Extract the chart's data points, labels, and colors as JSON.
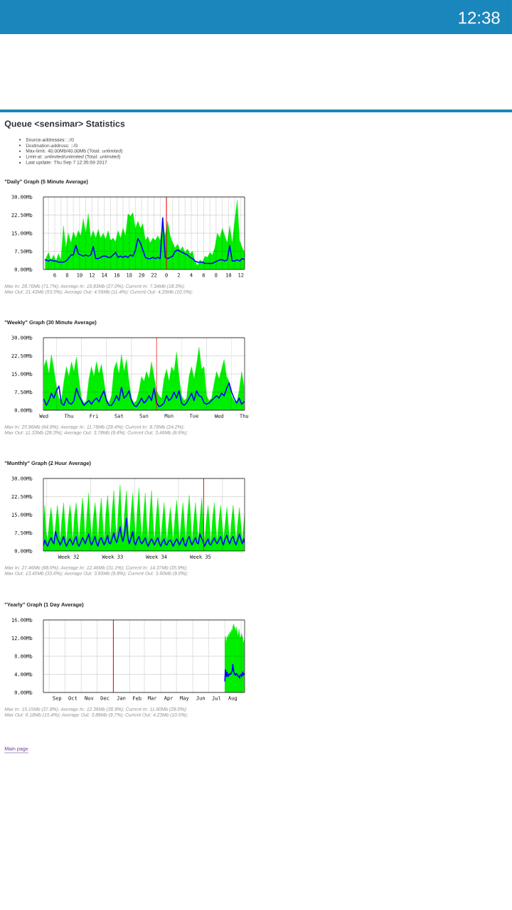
{
  "chart_data": [
    {
      "type": "other",
      "annotations": [
        "12:38"
      ]
    },
    {
      "type": "other",
      "title": "Queue <sensimar> Statistics",
      "annotations": [
        "Source-addresses: ::/0",
        "Destination-address: ::/0",
        "Max-limit: 40.00Mb/40.00Mb (Total: *unlimited*)",
        "Limit-at: *unlimited/unlimited* (Total: *unlimited*)",
        "Last update: Thu Sep 7 12:35:59 2017"
      ]
    },
    {
      "type": "area",
      "title": "\"Daily\" Graph (5 Minute Average)",
      "x": [
        "2017-09-06T04:28",
        "2017-09-06T05:00",
        "2017-09-06T05:24",
        "2017-09-06T05:48",
        "2017-09-06T06:12",
        "2017-09-06T06:36",
        "2017-09-06T07:00",
        "2017-09-06T07:24",
        "2017-09-06T07:48",
        "2017-09-06T08:12",
        "2017-09-06T08:36",
        "2017-09-06T09:00",
        "2017-09-06T09:24",
        "2017-09-06T09:48",
        "2017-09-06T10:12",
        "2017-09-06T10:36",
        "2017-09-06T11:00",
        "2017-09-06T11:24",
        "2017-09-06T11:48",
        "2017-09-06T12:12",
        "2017-09-06T12:36",
        "2017-09-06T13:00",
        "2017-09-06T13:24",
        "2017-09-06T13:48",
        "2017-09-06T14:12",
        "2017-09-06T14:36",
        "2017-09-06T15:00",
        "2017-09-06T15:24",
        "2017-09-06T15:48",
        "2017-09-06T16:12",
        "2017-09-06T16:36",
        "2017-09-06T17:00",
        "2017-09-06T17:24",
        "2017-09-06T17:48",
        "2017-09-06T18:12",
        "2017-09-06T18:36",
        "2017-09-06T19:00",
        "2017-09-06T19:24",
        "2017-09-06T19:48",
        "2017-09-06T20:12",
        "2017-09-06T20:36",
        "2017-09-06T21:00",
        "2017-09-06T21:24",
        "2017-09-06T21:48",
        "2017-09-06T22:12",
        "2017-09-06T22:36",
        "2017-09-06T23:00",
        "2017-09-06T23:24",
        "2017-09-06T23:48",
        "2017-09-07T00:12",
        "2017-09-07T00:36",
        "2017-09-07T01:00",
        "2017-09-07T01:24",
        "2017-09-07T01:48",
        "2017-09-07T02:12",
        "2017-09-07T02:36",
        "2017-09-07T03:00",
        "2017-09-07T03:24",
        "2017-09-07T03:48",
        "2017-09-07T04:12",
        "2017-09-07T04:36",
        "2017-09-07T05:00",
        "2017-09-07T05:24",
        "2017-09-07T05:48",
        "2017-09-07T06:12",
        "2017-09-07T06:36",
        "2017-09-07T07:00",
        "2017-09-07T07:24",
        "2017-09-07T07:48",
        "2017-09-07T08:12",
        "2017-09-07T08:36",
        "2017-09-07T09:00",
        "2017-09-07T09:24",
        "2017-09-07T09:48",
        "2017-09-07T10:12",
        "2017-09-07T10:36",
        "2017-09-07T11:00",
        "2017-09-07T11:24",
        "2017-09-07T11:48",
        "2017-09-07T12:12",
        "2017-09-07T12:36"
      ],
      "series": [
        {
          "type": "area",
          "color": "#00ee00",
          "values": [
            4,
            7,
            3.5,
            6,
            3.5,
            6.5,
            4,
            18,
            9,
            15,
            11,
            15.5,
            13,
            16,
            14,
            21,
            15,
            23,
            13,
            16,
            13,
            16.5,
            13,
            15,
            12.5,
            16,
            12,
            13,
            11.5,
            16,
            13,
            17,
            14,
            23,
            22,
            23.5,
            17,
            20,
            17,
            19,
            12,
            13.5,
            11,
            13,
            12,
            14,
            12,
            18,
            14,
            20,
            14,
            11,
            9,
            10.5,
            8,
            9.5,
            7,
            8.5,
            6.5,
            7.5,
            3.5,
            1.5,
            4,
            3,
            5.5,
            5,
            7,
            6,
            9,
            15,
            13,
            17,
            14,
            11,
            18,
            11,
            20,
            28.7,
            12,
            9,
            7.3
          ]
        },
        {
          "type": "line",
          "color": "#0000ff",
          "values": [
            4,
            3.5,
            4,
            3.5,
            3.5,
            3,
            3,
            3,
            3.5,
            4.5,
            6,
            6,
            10,
            6.5,
            6,
            5.5,
            6,
            5.5,
            6,
            9.5,
            4.5,
            4.5,
            5,
            5.5,
            5.5,
            5,
            5,
            6,
            7,
            5,
            5.5,
            5,
            5.5,
            5,
            6,
            5.5,
            8,
            12.8,
            11,
            8,
            5,
            4.5,
            4.5,
            5,
            4.5,
            5,
            4.5,
            21.4,
            5,
            4.5,
            5,
            5.5,
            7.5,
            8,
            7.5,
            7,
            6.5,
            6,
            5,
            4.5,
            3.5,
            3,
            3,
            3,
            2.5,
            2.5,
            2.5,
            2.5,
            3,
            3.5,
            4,
            4,
            3.5,
            4,
            9.9,
            3.5,
            3.5,
            4,
            3.5,
            4.5,
            4.2
          ]
        }
      ],
      "xlim": [
        "2017-09-06T04:10",
        "2017-09-07T12:36"
      ],
      "ylim": [
        0,
        30
      ],
      "xticks": [
        {
          "value": "2017-09-06T05:00",
          "label": null
        },
        {
          "value": "2017-09-06T06:00",
          "label": null
        },
        {
          "value": "2017-09-06T06:00",
          "label": "6"
        },
        {
          "value": "2017-09-06T07:00",
          "label": null
        },
        {
          "value": "2017-09-06T08:00",
          "label": null
        },
        {
          "value": "2017-09-06T08:00",
          "label": "8"
        },
        {
          "value": "2017-09-06T09:00",
          "label": null
        },
        {
          "value": "2017-09-06T10:00",
          "label": null
        },
        {
          "value": "2017-09-06T10:00",
          "label": "10"
        },
        {
          "value": "2017-09-06T11:00",
          "label": null
        },
        {
          "value": "2017-09-06T12:00",
          "label": null
        },
        {
          "value": "2017-09-06T12:00",
          "label": "12"
        },
        {
          "value": "2017-09-06T13:00",
          "label": null
        },
        {
          "value": "2017-09-06T14:00",
          "label": null
        },
        {
          "value": "2017-09-06T14:00",
          "label": "14"
        },
        {
          "value": "2017-09-06T15:00",
          "label": null
        },
        {
          "value": "2017-09-06T16:00",
          "label": null
        },
        {
          "value": "2017-09-06T16:00",
          "label": "16"
        },
        {
          "value": "2017-09-06T17:00",
          "label": null
        },
        {
          "value": "2017-09-06T18:00",
          "label": null
        },
        {
          "value": "2017-09-06T18:00",
          "label": "18"
        },
        {
          "value": "2017-09-06T19:00",
          "label": null
        },
        {
          "value": "2017-09-06T20:00",
          "label": null
        },
        {
          "value": "2017-09-06T20:00",
          "label": "20"
        },
        {
          "value": "2017-09-06T21:00",
          "label": null
        },
        {
          "value": "2017-09-06T22:00",
          "label": null
        },
        {
          "value": "2017-09-06T22:00",
          "label": "22"
        },
        {
          "value": "2017-09-06T23:00",
          "label": null
        },
        {
          "value": "2017-09-07T00:00",
          "label": null
        },
        {
          "value": "2017-09-07T00:00",
          "label": "0"
        },
        {
          "value": "2017-09-07T01:00",
          "label": null
        },
        {
          "value": "2017-09-07T02:00",
          "label": null
        },
        {
          "value": "2017-09-07T02:00",
          "label": "2"
        },
        {
          "value": "2017-09-07T03:00",
          "label": null
        },
        {
          "value": "2017-09-07T04:00",
          "label": null
        },
        {
          "value": "2017-09-07T04:00",
          "label": "4"
        },
        {
          "value": "2017-09-07T05:00",
          "label": null
        },
        {
          "value": "2017-09-07T06:00",
          "label": null
        },
        {
          "value": "2017-09-07T06:00",
          "label": "6"
        },
        {
          "value": "2017-09-07T07:00",
          "label": null
        },
        {
          "value": "2017-09-07T08:00",
          "label": null
        },
        {
          "value": "2017-09-07T08:00",
          "label": "8"
        },
        {
          "value": "2017-09-07T09:00",
          "label": null
        },
        {
          "value": "2017-09-07T10:00",
          "label": null
        },
        {
          "value": "2017-09-07T10:00",
          "label": "10"
        },
        {
          "value": "2017-09-07T11:00",
          "label": null
        },
        {
          "value": "2017-09-07T12:00",
          "label": null
        },
        {
          "value": "2017-09-07T12:00",
          "label": "12"
        }
      ],
      "yticks": [
        {
          "value": 0,
          "label": "0.00Mb"
        },
        {
          "value": 7.5,
          "label": "7.50Mb"
        },
        {
          "value": 15,
          "label": "15.00Mb"
        },
        {
          "value": 22.5,
          "label": "22.50Mb"
        },
        {
          "value": 30,
          "label": "30.00Mb"
        }
      ],
      "grid": true,
      "ref_lines": [
        {
          "axis": "x",
          "value": "2017-09-07T00:00",
          "color": "#ff0000"
        }
      ],
      "annotations": [
        "Max In: 28.70Mb (71.7%); Average In: 10.83Mb (27.0%); Current In: 7.34Mb (18.3%);",
        "Max Out: 21.43Mb (53.5%); Average Out: 4.56Mb (11.4%); Current Out: 4.20Mb (10.5%);"
      ]
    },
    {
      "type": "area",
      "title": "\"Weekly\" Graph (30 Minute Average)",
      "categories": [
        "Wed",
        null,
        null,
        null,
        null,
        null,
        null,
        null,
        null,
        null,
        "Thu",
        null,
        null,
        null,
        null,
        null,
        null,
        null,
        null,
        null,
        "Fri",
        null,
        null,
        null,
        null,
        null,
        null,
        null,
        null,
        null,
        "Sat",
        null,
        null,
        null,
        null,
        null,
        null,
        null,
        null,
        null,
        "Sun",
        null,
        null,
        null,
        null,
        null,
        null,
        null,
        null,
        null,
        "Mon",
        null,
        null,
        null,
        null,
        null,
        null,
        null,
        null,
        null,
        "Tue",
        null,
        null,
        null,
        null,
        null,
        null,
        null,
        null,
        null,
        "Wed",
        null,
        null,
        null,
        null,
        null,
        null,
        null,
        null,
        null,
        "Thu"
      ],
      "series": [
        {
          "type": "area",
          "color": "#00ee00",
          "values": [
            18,
            21,
            15,
            23,
            17,
            10,
            5,
            4,
            12,
            18,
            14,
            20,
            16,
            22,
            13,
            5,
            3,
            4,
            13,
            18,
            14,
            20,
            15,
            19,
            12,
            5,
            3,
            6,
            17,
            20,
            15,
            23,
            16,
            21,
            12,
            5,
            3,
            4,
            8,
            14,
            12,
            16,
            13,
            20,
            14,
            8,
            6,
            5,
            13,
            17,
            12,
            18,
            16,
            24,
            14,
            6,
            4,
            5,
            14,
            18,
            13,
            19,
            26,
            17,
            18,
            6,
            4,
            5,
            11,
            16,
            13,
            17,
            21,
            14,
            12,
            6,
            4,
            3,
            8,
            16,
            9.7
          ]
        },
        {
          "type": "line",
          "color": "#0000ff",
          "values": [
            4.5,
            2,
            4,
            7,
            5,
            8,
            10,
            3,
            2,
            5,
            3,
            2.5,
            4,
            9,
            6,
            4,
            2,
            3,
            4,
            2.5,
            4,
            5,
            3.5,
            6,
            8,
            4,
            2,
            2,
            3.5,
            6,
            4,
            9.5,
            5,
            6,
            8,
            4,
            2,
            1.5,
            3,
            5,
            3,
            4,
            6,
            4,
            9,
            3,
            1.5,
            2,
            3,
            6,
            4,
            5,
            7.5,
            5,
            8,
            3,
            2,
            3,
            5,
            7,
            4,
            8,
            6,
            5.5,
            3,
            2.5,
            3,
            4,
            5,
            6,
            5,
            7,
            6,
            9,
            11.3,
            7.5,
            5,
            3,
            5,
            2.5,
            3.5
          ]
        }
      ],
      "ylim": [
        0,
        30
      ],
      "yticks": [
        {
          "value": 0,
          "label": "0.00Mb"
        },
        {
          "value": 7.5,
          "label": "7.50Mb"
        },
        {
          "value": 15,
          "label": "15.00Mb"
        },
        {
          "value": 22.5,
          "label": "22.50Mb"
        },
        {
          "value": 30,
          "label": "30.00Mb"
        }
      ],
      "grid": "y",
      "annotations": [
        "Max In: 25.96Mb (64.9%); Average In: 11.78Mb (29.4%); Current In: 9.70Mb (24.2%);",
        "Max Out: 11.33Mb (28.3%); Average Out: 3.78Mb (9.4%); Current Out: 3.46Mb (8.6%);"
      ]
    },
    {
      "type": "area",
      "title": "\"Monthly\" Graph (2 Hour Average)",
      "x": [
        "2017-08-06T12:00",
        "2017-08-06T16:48",
        "2017-08-06T21:36",
        "2017-08-07T03:36",
        "2017-08-07T09:36",
        "2017-08-07T16:48",
        "2017-08-07T21:36",
        "2017-08-08T03:36",
        "2017-08-08T09:36",
        "2017-08-08T16:48",
        "2017-08-08T21:36",
        "2017-08-09T03:36",
        "2017-08-09T09:36",
        "2017-08-09T16:48",
        "2017-08-09T21:36",
        "2017-08-10T03:36",
        "2017-08-10T09:36",
        "2017-08-10T16:48",
        "2017-08-10T21:36",
        "2017-08-11T03:36",
        "2017-08-11T09:36",
        "2017-08-11T16:48",
        "2017-08-11T21:36",
        "2017-08-12T03:36",
        "2017-08-12T09:36",
        "2017-08-12T16:48",
        "2017-08-12T21:36",
        "2017-08-13T03:36",
        "2017-08-13T09:36",
        "2017-08-13T16:48",
        "2017-08-13T21:36",
        "2017-08-14T03:36",
        "2017-08-14T09:36",
        "2017-08-14T16:48",
        "2017-08-14T21:36",
        "2017-08-15T03:36",
        "2017-08-15T09:36",
        "2017-08-15T16:48",
        "2017-08-15T21:36",
        "2017-08-16T03:36",
        "2017-08-16T09:36",
        "2017-08-16T16:48",
        "2017-08-16T21:36",
        "2017-08-17T03:36",
        "2017-08-17T09:36",
        "2017-08-17T16:48",
        "2017-08-17T21:36",
        "2017-08-18T03:36",
        "2017-08-18T09:36",
        "2017-08-18T16:48",
        "2017-08-18T21:36",
        "2017-08-19T03:36",
        "2017-08-19T09:36",
        "2017-08-19T16:48",
        "2017-08-19T21:36",
        "2017-08-20T03:36",
        "2017-08-20T09:36",
        "2017-08-20T16:48",
        "2017-08-20T21:36",
        "2017-08-21T03:36",
        "2017-08-21T09:36",
        "2017-08-21T16:48",
        "2017-08-21T21:36",
        "2017-08-22T03:36",
        "2017-08-22T09:36",
        "2017-08-22T16:48",
        "2017-08-22T21:36",
        "2017-08-23T03:36",
        "2017-08-23T09:36",
        "2017-08-23T16:48",
        "2017-08-23T21:36",
        "2017-08-24T03:36",
        "2017-08-24T09:36",
        "2017-08-24T16:48",
        "2017-08-24T21:36",
        "2017-08-25T03:36",
        "2017-08-25T09:36",
        "2017-08-25T16:48",
        "2017-08-25T21:36",
        "2017-08-26T03:36",
        "2017-08-26T09:36",
        "2017-08-26T16:48",
        "2017-08-26T21:36",
        "2017-08-27T03:36",
        "2017-08-27T09:36",
        "2017-08-27T16:48",
        "2017-08-27T21:36",
        "2017-08-28T03:36",
        "2017-08-28T09:36",
        "2017-08-28T16:48",
        "2017-08-28T21:36",
        "2017-08-29T03:36",
        "2017-08-29T09:36",
        "2017-08-29T16:48",
        "2017-08-29T21:36",
        "2017-08-30T03:36",
        "2017-08-30T09:36",
        "2017-08-30T16:48",
        "2017-08-30T21:36",
        "2017-08-31T03:36",
        "2017-08-31T09:36",
        "2017-08-31T16:48",
        "2017-08-31T21:36",
        "2017-09-01T03:36",
        "2017-09-01T09:36",
        "2017-09-01T16:48",
        "2017-09-01T21:36",
        "2017-09-02T03:36",
        "2017-09-02T09:36",
        "2017-09-02T16:48",
        "2017-09-02T21:36",
        "2017-09-03T03:36",
        "2017-09-03T09:36",
        "2017-09-03T16:48",
        "2017-09-03T21:36",
        "2017-09-04T03:36",
        "2017-09-04T09:36",
        "2017-09-04T16:48",
        "2017-09-04T21:36",
        "2017-09-05T03:36",
        "2017-09-05T09:36",
        "2017-09-05T16:48",
        "2017-09-05T21:36",
        "2017-09-06T03:36",
        "2017-09-06T09:36",
        "2017-09-06T16:48",
        "2017-09-06T21:36",
        "2017-09-07T03:36",
        "2017-09-07T09:36",
        "2017-09-07T12:00"
      ],
      "series": [
        {
          "type": "area",
          "color": "#00ee00",
          "values": [
            12,
            19,
            8,
            4,
            12,
            18,
            13,
            3.5,
            11,
            19,
            14,
            4,
            13,
            20,
            12,
            3.5,
            12,
            19,
            15,
            4,
            14,
            20,
            13,
            4.5,
            13,
            22,
            16,
            4,
            15,
            24,
            14,
            5,
            13,
            20,
            15,
            4,
            14,
            22,
            13,
            4.5,
            15,
            23,
            16,
            5,
            16,
            25,
            14,
            5,
            17,
            27.5,
            15,
            6,
            16,
            25,
            14,
            5,
            15,
            24,
            16,
            4.5,
            16,
            26,
            15,
            5,
            14,
            24,
            13,
            4,
            15,
            25,
            14,
            4,
            13,
            22,
            15,
            3.5,
            12,
            20,
            13,
            4,
            11,
            18,
            12,
            4,
            13,
            21,
            14,
            3.5,
            12,
            20,
            13,
            4,
            14,
            23,
            15,
            4,
            12,
            20,
            13,
            4.5,
            13,
            22,
            14,
            4,
            12,
            19,
            13,
            3.5,
            13,
            20,
            12,
            4,
            12,
            19,
            13,
            4,
            11,
            18,
            12,
            3.5,
            12,
            19,
            13,
            4,
            11,
            18,
            12,
            4,
            12,
            14.4
          ]
        },
        {
          "type": "line",
          "color": "#0000ff",
          "values": [
            2.5,
            4.5,
            3,
            2,
            4,
            5.5,
            4,
            3,
            8,
            5,
            4,
            2.5,
            4,
            6,
            3.5,
            2,
            3.5,
            5,
            4,
            2.5,
            4.5,
            6,
            3,
            2,
            3.5,
            5.5,
            4.5,
            3,
            5,
            7,
            4,
            2.5,
            4,
            6,
            3.5,
            2,
            4.5,
            5.5,
            4,
            2.5,
            4,
            6.5,
            3.5,
            3,
            5,
            7.5,
            5,
            3.5,
            6,
            10,
            6,
            4,
            7,
            13.5,
            6,
            3,
            5,
            8,
            4,
            2.5,
            4.5,
            6,
            4,
            3,
            4,
            5.5,
            3.5,
            2,
            3.5,
            5,
            4,
            2.5,
            4,
            5.5,
            3.5,
            2,
            3.5,
            5,
            3,
            2.5,
            4,
            4.5,
            3.5,
            2,
            3.5,
            5,
            4,
            2.5,
            4,
            5.5,
            3,
            2,
            4.5,
            6,
            4,
            2.5,
            4,
            5.5,
            3.5,
            3,
            7,
            5,
            4,
            2,
            3.5,
            5,
            3,
            2.5,
            4,
            5.5,
            4,
            3,
            4.5,
            6,
            4,
            2.5,
            5,
            6.5,
            4.5,
            3,
            5,
            6,
            4,
            2.5,
            4.5,
            7,
            5,
            3,
            5,
            3.6
          ]
        }
      ],
      "xlim": [
        "2017-08-06T11:17",
        "2017-09-07T12:36"
      ],
      "ylim": [
        0,
        30
      ],
      "xticks": [
        {
          "value": "2017-08-07",
          "label": null
        },
        {
          "value": "2017-08-10T12:00",
          "label": "Week 32"
        },
        {
          "value": "2017-08-14",
          "label": null
        },
        {
          "value": "2017-08-17T12:00",
          "label": "Week 33"
        },
        {
          "value": "2017-08-21",
          "label": null
        },
        {
          "value": "2017-08-24T12:00",
          "label": "Week 34"
        },
        {
          "value": "2017-08-28",
          "label": null
        },
        {
          "value": "2017-08-31T12:00",
          "label": "Week 35"
        },
        {
          "value": "2017-09-04",
          "label": null
        }
      ],
      "yticks": [
        {
          "value": 0,
          "label": "0.00Mb"
        },
        {
          "value": 7.5,
          "label": "7.50Mb"
        },
        {
          "value": 15,
          "label": "15.00Mb"
        },
        {
          "value": 22.5,
          "label": "22.50Mb"
        },
        {
          "value": 30,
          "label": "30.00Mb"
        }
      ],
      "grid": true,
      "ref_lines": [
        {
          "axis": "x",
          "value": "2017-09-01",
          "color": "#ff0000"
        }
      ],
      "annotations": [
        "Max In: 27.46Mb (68.6%); Average In: 12.46Mb (31.1%); Current In: 14.37Mb (35.9%);",
        "Max Out: 13.45Mb (33.6%); Average Out: 3.93Mb (9.8%); Current Out: 3.60Mb (9.0%);"
      ]
    },
    {
      "type": "area",
      "title": "\"Yearly\" Graph (1 Day Average)",
      "x": [
        "2017-08-01",
        "2017-08-02",
        "2017-08-04",
        "2017-08-05",
        "2017-08-07",
        "2017-08-08",
        "2017-08-09",
        "2017-08-11",
        "2017-08-12",
        "2017-08-14",
        "2017-08-15",
        "2017-08-16",
        "2017-08-18",
        "2017-08-19",
        "2017-08-21",
        "2017-08-22",
        "2017-08-23",
        "2017-08-25",
        "2017-08-26",
        "2017-08-28",
        "2017-08-29",
        "2017-08-30",
        "2017-09-01",
        "2017-09-02",
        "2017-09-04",
        "2017-09-05",
        "2017-09-07"
      ],
      "series": [
        {
          "type": "area",
          "color": "#00ee00",
          "values": [
            11.5,
            12.5,
            11,
            12.5,
            12,
            13,
            12.5,
            13.5,
            13,
            14,
            13.5,
            14.5,
            15.1,
            14.5,
            14,
            13.5,
            14.5,
            13,
            12.5,
            14,
            13,
            12,
            12.5,
            13,
            12,
            11,
            11.6
          ]
        },
        {
          "type": "line",
          "color": "#0000ff",
          "values": [
            2.5,
            5,
            3.5,
            4.5,
            3.5,
            4,
            3.8,
            4.2,
            4,
            4.5,
            4.8,
            6.2,
            4.5,
            4.2,
            3.8,
            4,
            4.2,
            3.8,
            3.6,
            3.5,
            3.2,
            3.8,
            4,
            3.5,
            4.5,
            3.8,
            4.2
          ]
        }
      ],
      "xlim": [
        "2016-08-21",
        "2017-09-07T12:36"
      ],
      "ylim": [
        0,
        16
      ],
      "xticks": [
        {
          "value": "2016-09-01",
          "label": null
        },
        {
          "value": "2016-09-16",
          "label": "Sep"
        },
        {
          "value": "2016-10-01",
          "label": null
        },
        {
          "value": "2016-10-16",
          "label": "Oct"
        },
        {
          "value": "2016-11-01",
          "label": null
        },
        {
          "value": "2016-11-16",
          "label": "Nov"
        },
        {
          "value": "2016-12-01",
          "label": null
        },
        {
          "value": "2016-12-16",
          "label": "Dec"
        },
        {
          "value": "2017-01-01",
          "label": null
        },
        {
          "value": "2017-01-16",
          "label": "Jan"
        },
        {
          "value": "2017-02-01",
          "label": null
        },
        {
          "value": "2017-02-15",
          "label": "Feb"
        },
        {
          "value": "2017-03-01",
          "label": null
        },
        {
          "value": "2017-03-16",
          "label": "Mar"
        },
        {
          "value": "2017-04-01",
          "label": null
        },
        {
          "value": "2017-04-16",
          "label": "Apr"
        },
        {
          "value": "2017-05-01",
          "label": null
        },
        {
          "value": "2017-05-16",
          "label": "May"
        },
        {
          "value": "2017-06-01",
          "label": null
        },
        {
          "value": "2017-06-16",
          "label": "Jun"
        },
        {
          "value": "2017-07-01",
          "label": null
        },
        {
          "value": "2017-07-16",
          "label": "Jul"
        },
        {
          "value": "2017-08-01",
          "label": null
        },
        {
          "value": "2017-08-16",
          "label": "Aug"
        },
        {
          "value": "2017-09-01",
          "label": null
        }
      ],
      "yticks": [
        {
          "value": 0,
          "label": "0.00Mb"
        },
        {
          "value": 4,
          "label": "4.00Mb"
        },
        {
          "value": 8,
          "label": "8.00Mb"
        },
        {
          "value": 12,
          "label": "12.00Mb"
        },
        {
          "value": 16,
          "label": "16.00Mb"
        }
      ],
      "grid": true,
      "ref_lines": [
        {
          "axis": "x",
          "value": "2017-01-01",
          "color": "#ff0000"
        }
      ],
      "annotations": [
        "Max In: 15.15Mb (37.8%); Average In: 12.36Mb (30.9%); Current In: 11.60Mb (29.0%);",
        "Max Out: 6.18Mb (15.4%); Average Out: 3.89Mb (9.7%); Current Out: 4.23Mb (10.5%);"
      ]
    },
    {
      "type": "other",
      "annotations": [
        "Main page"
      ]
    }
  ]
}
